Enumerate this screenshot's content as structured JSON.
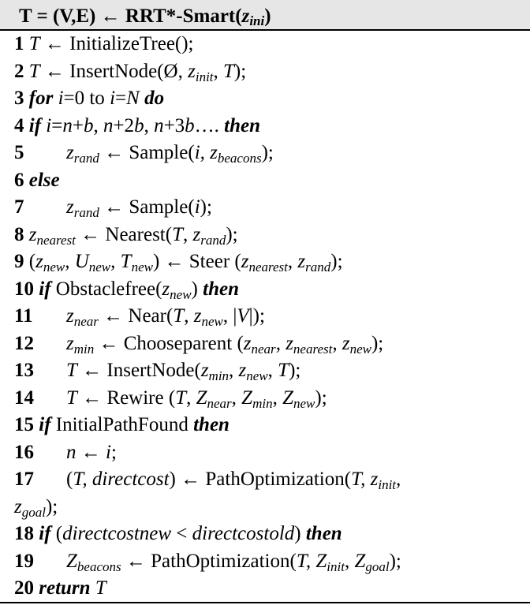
{
  "header": {
    "prefix": "T = (V,E) ← RRT*-Smart(",
    "var": "z",
    "sub": "ini",
    "suffix": ")"
  },
  "lines": {
    "l1": {
      "num": "1",
      "a": "T",
      "b": " ← InitializeTree();"
    },
    "l2": {
      "num": "2",
      "a": "T",
      "b": " ← InsertNode(Ø, ",
      "c": "z",
      "c_sub": "init",
      "d": ", ",
      "e": "T",
      "f": ");"
    },
    "l3": {
      "num": "3",
      "kw1": "for",
      "a": " i",
      "b": "=0 to ",
      "c": "i",
      "d": "=",
      "e": "N",
      "kw2": " do"
    },
    "l4": {
      "num": "4",
      "kw1": "if",
      "a": " i",
      "b": "=",
      "c": "n",
      "d": "+",
      "e": "b",
      "f": ", ",
      "g": "n",
      "h": "+2",
      "i": "b",
      "j": ", ",
      "k": "n",
      "l": "+3",
      "m": "b",
      "n": "…. ",
      "kw2": "then"
    },
    "l5": {
      "num": "5",
      "a": "z",
      "a_sub": "rand",
      "b": " ← Sample(",
      "c": "i, z",
      "c_sub": "beacons",
      "d": ");"
    },
    "l6": {
      "num": "6",
      "kw": "else"
    },
    "l7": {
      "num": "7",
      "a": "z",
      "a_sub": "rand",
      "b": " ← Sample(",
      "c": "i",
      "d": ");"
    },
    "l8": {
      "num": "8",
      "a": "z",
      "a_sub": "nearest",
      "b": " ← Nearest(",
      "c": "T",
      "d": ", ",
      "e": "z",
      "e_sub": "rand",
      "f": ");"
    },
    "l9": {
      "num": "9",
      "a": " (",
      "b": "z",
      "b_sub": "new",
      "c": ", U",
      "c_sub": "new",
      "d": ", T",
      "d_sub": "new",
      "e": ") ← Steer (",
      "f": "z",
      "f_sub": "nearest",
      "g": ", ",
      "h": "z",
      "h_sub": "rand",
      "i": ");"
    },
    "l10": {
      "num": "10",
      "kw1": "if",
      "a": " Obstaclefree(",
      "b": "z",
      "b_sub": "new",
      "c": ") ",
      "kw2": "then"
    },
    "l11": {
      "num": "11",
      "a": "z",
      "a_sub": "near",
      "b": " ← Near(",
      "c": "T",
      "d": ", ",
      "e": "z",
      "e_sub": "new",
      "f": ", |",
      "g": "V",
      "h": "|);"
    },
    "l12": {
      "num": "12",
      "a": "z",
      "a_sub": "min",
      "b": " ← Chooseparent (",
      "c": "z",
      "c_sub": "near",
      "d": ", z",
      "d_sub": "nearest",
      "e": ", z",
      "e_sub": "new",
      "f": ");"
    },
    "l13": {
      "num": "13",
      "a": "T",
      "b": " ← InsertNode(",
      "c": "z",
      "c_sub": "min",
      "d": ", ",
      "e": "z",
      "e_sub": "new",
      "f": ", ",
      "g": "T",
      "h": ");"
    },
    "l14": {
      "num": "14",
      "a": "T",
      "b": " ← Rewire (",
      "c": "T",
      "d": ", ",
      "e": "Z",
      "e_sub": "near",
      "f": ", ",
      "g": "Z",
      "g_sub": "min",
      "h": ", ",
      "i": "Z",
      "i_sub": "new",
      "j": ");"
    },
    "l15": {
      "num": "15",
      "kw1": "if",
      "a": " InitialPathFound ",
      "kw2": "then"
    },
    "l16": {
      "num": "16",
      "a": "n",
      "b": " ← ",
      "c": "i",
      "d": ";"
    },
    "l17": {
      "num": "17",
      "a": "(",
      "b": "T, directcost",
      "c": ") ← PathOptimization(",
      "d": "T, z",
      "d_sub": "init",
      "e": ","
    },
    "l17b": {
      "a": "z",
      "a_sub": "goal",
      "b": ");"
    },
    "l18": {
      "num": "18",
      "kw1": "if",
      "a": " (",
      "b": "directcostnew",
      "c": " < ",
      "d": "directcostold",
      "e": ") ",
      "kw2": "then"
    },
    "l19": {
      "num": "19",
      "a": "Z",
      "a_sub": "beacons",
      "b": " ← PathOptimization(",
      "c": "T, Z",
      "c_sub": "init",
      "d": ", ",
      "e": "Z",
      "e_sub": "goal",
      "f": ");"
    },
    "l20": {
      "num": "20",
      "kw": "return",
      "a": " T"
    }
  }
}
